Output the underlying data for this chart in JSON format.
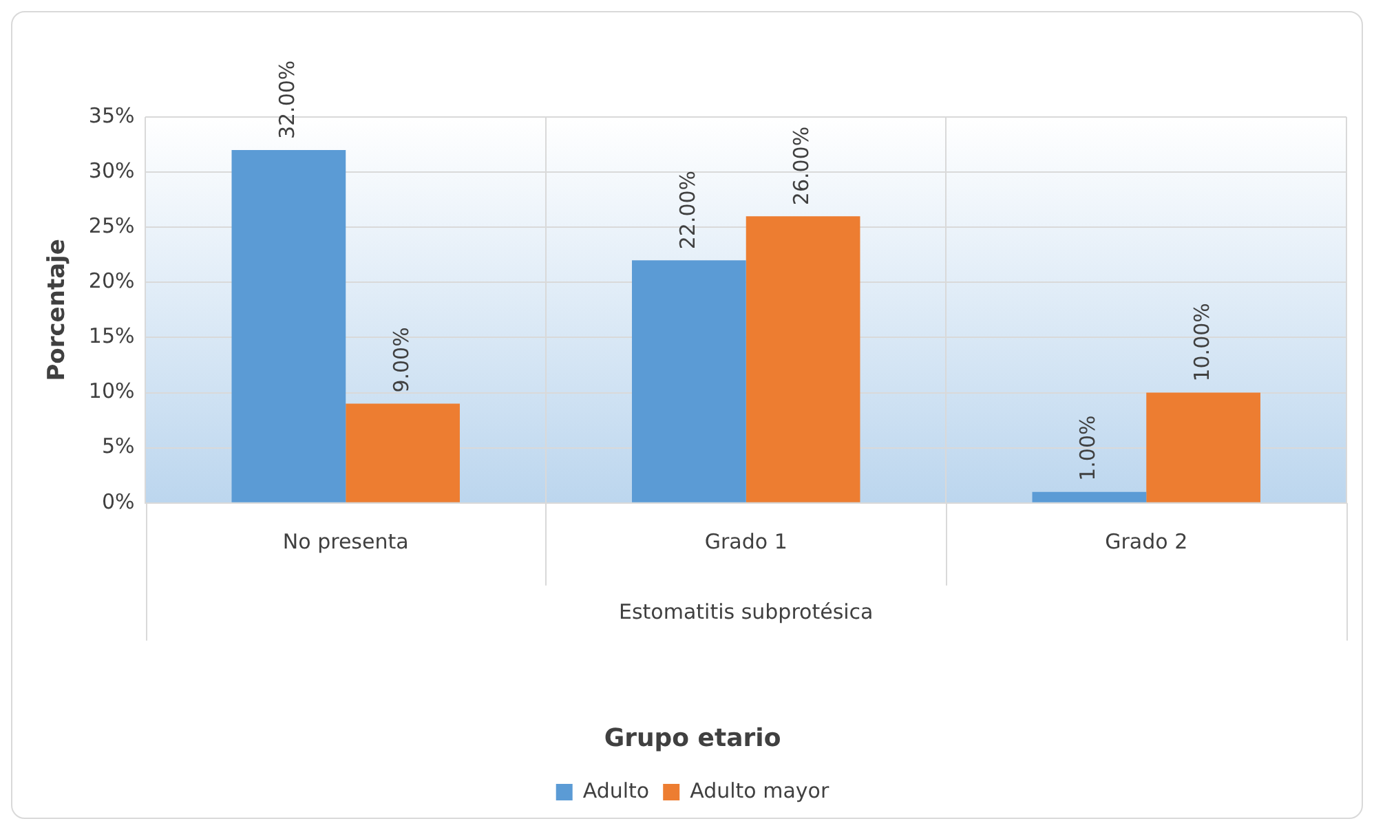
{
  "chart_data": {
    "type": "bar",
    "legend_title": "Grupo etario",
    "ylabel": "Porcentaje",
    "categories": [
      "No presenta",
      "Grado 1",
      "Grado 2"
    ],
    "annotations": [
      "Estomatitis subprotésica"
    ],
    "series": [
      {
        "name": "Adulto",
        "color": "#5b9bd5",
        "values": [
          32,
          22,
          1
        ],
        "value_labels": [
          "32.00%",
          "22.00%",
          "1.00%"
        ]
      },
      {
        "name": "Adulto mayor",
        "color": "#ed7d31",
        "values": [
          9,
          26,
          10
        ],
        "value_labels": [
          "9.00%",
          "26.00%",
          "10.00%"
        ]
      }
    ],
    "ylim": [
      0,
      35
    ],
    "yticks": [
      {
        "value": 0,
        "label": "0%"
      },
      {
        "value": 5,
        "label": "5%"
      },
      {
        "value": 10,
        "label": "10%"
      },
      {
        "value": 15,
        "label": "15%"
      },
      {
        "value": 20,
        "label": "20%"
      },
      {
        "value": 25,
        "label": "25%"
      },
      {
        "value": 30,
        "label": "30%"
      },
      {
        "value": 35,
        "label": "35%"
      }
    ],
    "grid": true,
    "legend": "bottom"
  }
}
